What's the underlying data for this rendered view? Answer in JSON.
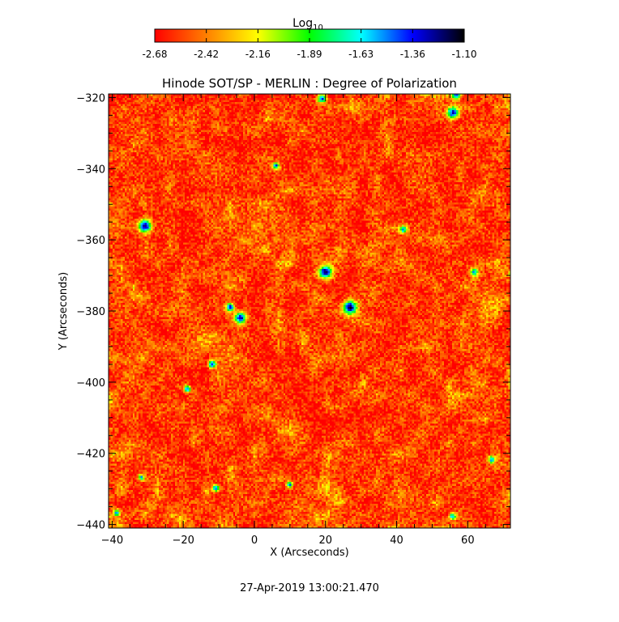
{
  "chart_data": {
    "type": "heatmap",
    "title": "Hinode SOT/SP - MERLIN : Degree of Polarization",
    "xlabel": "X (Arcseconds)",
    "ylabel": "Y (Arcseconds)",
    "xlim": [
      -41,
      72
    ],
    "ylim": [
      -441,
      -319
    ],
    "x_ticks": [
      -40,
      -20,
      0,
      20,
      40,
      60
    ],
    "y_ticks": [
      -320,
      -340,
      -360,
      -380,
      -400,
      -420,
      -440
    ],
    "colorbar": {
      "label_base": "Log",
      "label_sub": "10",
      "ticks": [
        "-2.68",
        "-2.42",
        "-2.16",
        "-1.89",
        "-1.63",
        "-1.36",
        "-1.10"
      ],
      "range": [
        -2.68,
        -1.1
      ],
      "colormap": [
        "#ff0000",
        "#ff7f00",
        "#ffff00",
        "#00ff00",
        "#00ffff",
        "#0000ff",
        "#000000"
      ]
    },
    "background_level": -2.55,
    "hotspots": [
      {
        "x": -31,
        "y": -356,
        "value": -1.15,
        "radius": 1.6
      },
      {
        "x": 20,
        "y": -369,
        "value": -1.18,
        "radius": 1.8
      },
      {
        "x": 27,
        "y": -379,
        "value": -1.15,
        "radius": 1.8
      },
      {
        "x": 56,
        "y": -324,
        "value": -1.3,
        "radius": 1.6
      },
      {
        "x": 57,
        "y": -319,
        "value": -1.4,
        "radius": 1.2
      },
      {
        "x": 19,
        "y": -320,
        "value": -1.4,
        "radius": 1.2
      },
      {
        "x": -4,
        "y": -382,
        "value": -1.25,
        "radius": 1.5
      },
      {
        "x": -7,
        "y": -379,
        "value": -1.3,
        "radius": 1.1
      },
      {
        "x": -12,
        "y": -395,
        "value": -1.3,
        "radius": 1.0
      },
      {
        "x": -19,
        "y": -402,
        "value": -1.4,
        "radius": 0.9
      },
      {
        "x": 6,
        "y": -339,
        "value": -1.4,
        "radius": 0.8
      },
      {
        "x": 42,
        "y": -357,
        "value": -1.45,
        "radius": 1.0
      },
      {
        "x": 62,
        "y": -369,
        "value": -1.5,
        "radius": 1.0
      },
      {
        "x": -11,
        "y": -430,
        "value": -1.4,
        "radius": 0.9
      },
      {
        "x": 67,
        "y": -422,
        "value": -1.5,
        "radius": 0.9
      },
      {
        "x": 56,
        "y": -438,
        "value": -1.5,
        "radius": 0.9
      },
      {
        "x": -39,
        "y": -437,
        "value": -1.5,
        "radius": 0.8
      },
      {
        "x": 10,
        "y": -429,
        "value": -1.5,
        "radius": 0.8
      },
      {
        "x": -32,
        "y": -427,
        "value": -1.55,
        "radius": 0.8
      }
    ]
  },
  "timestamp": "27-Apr-2019 13:00:21.470"
}
